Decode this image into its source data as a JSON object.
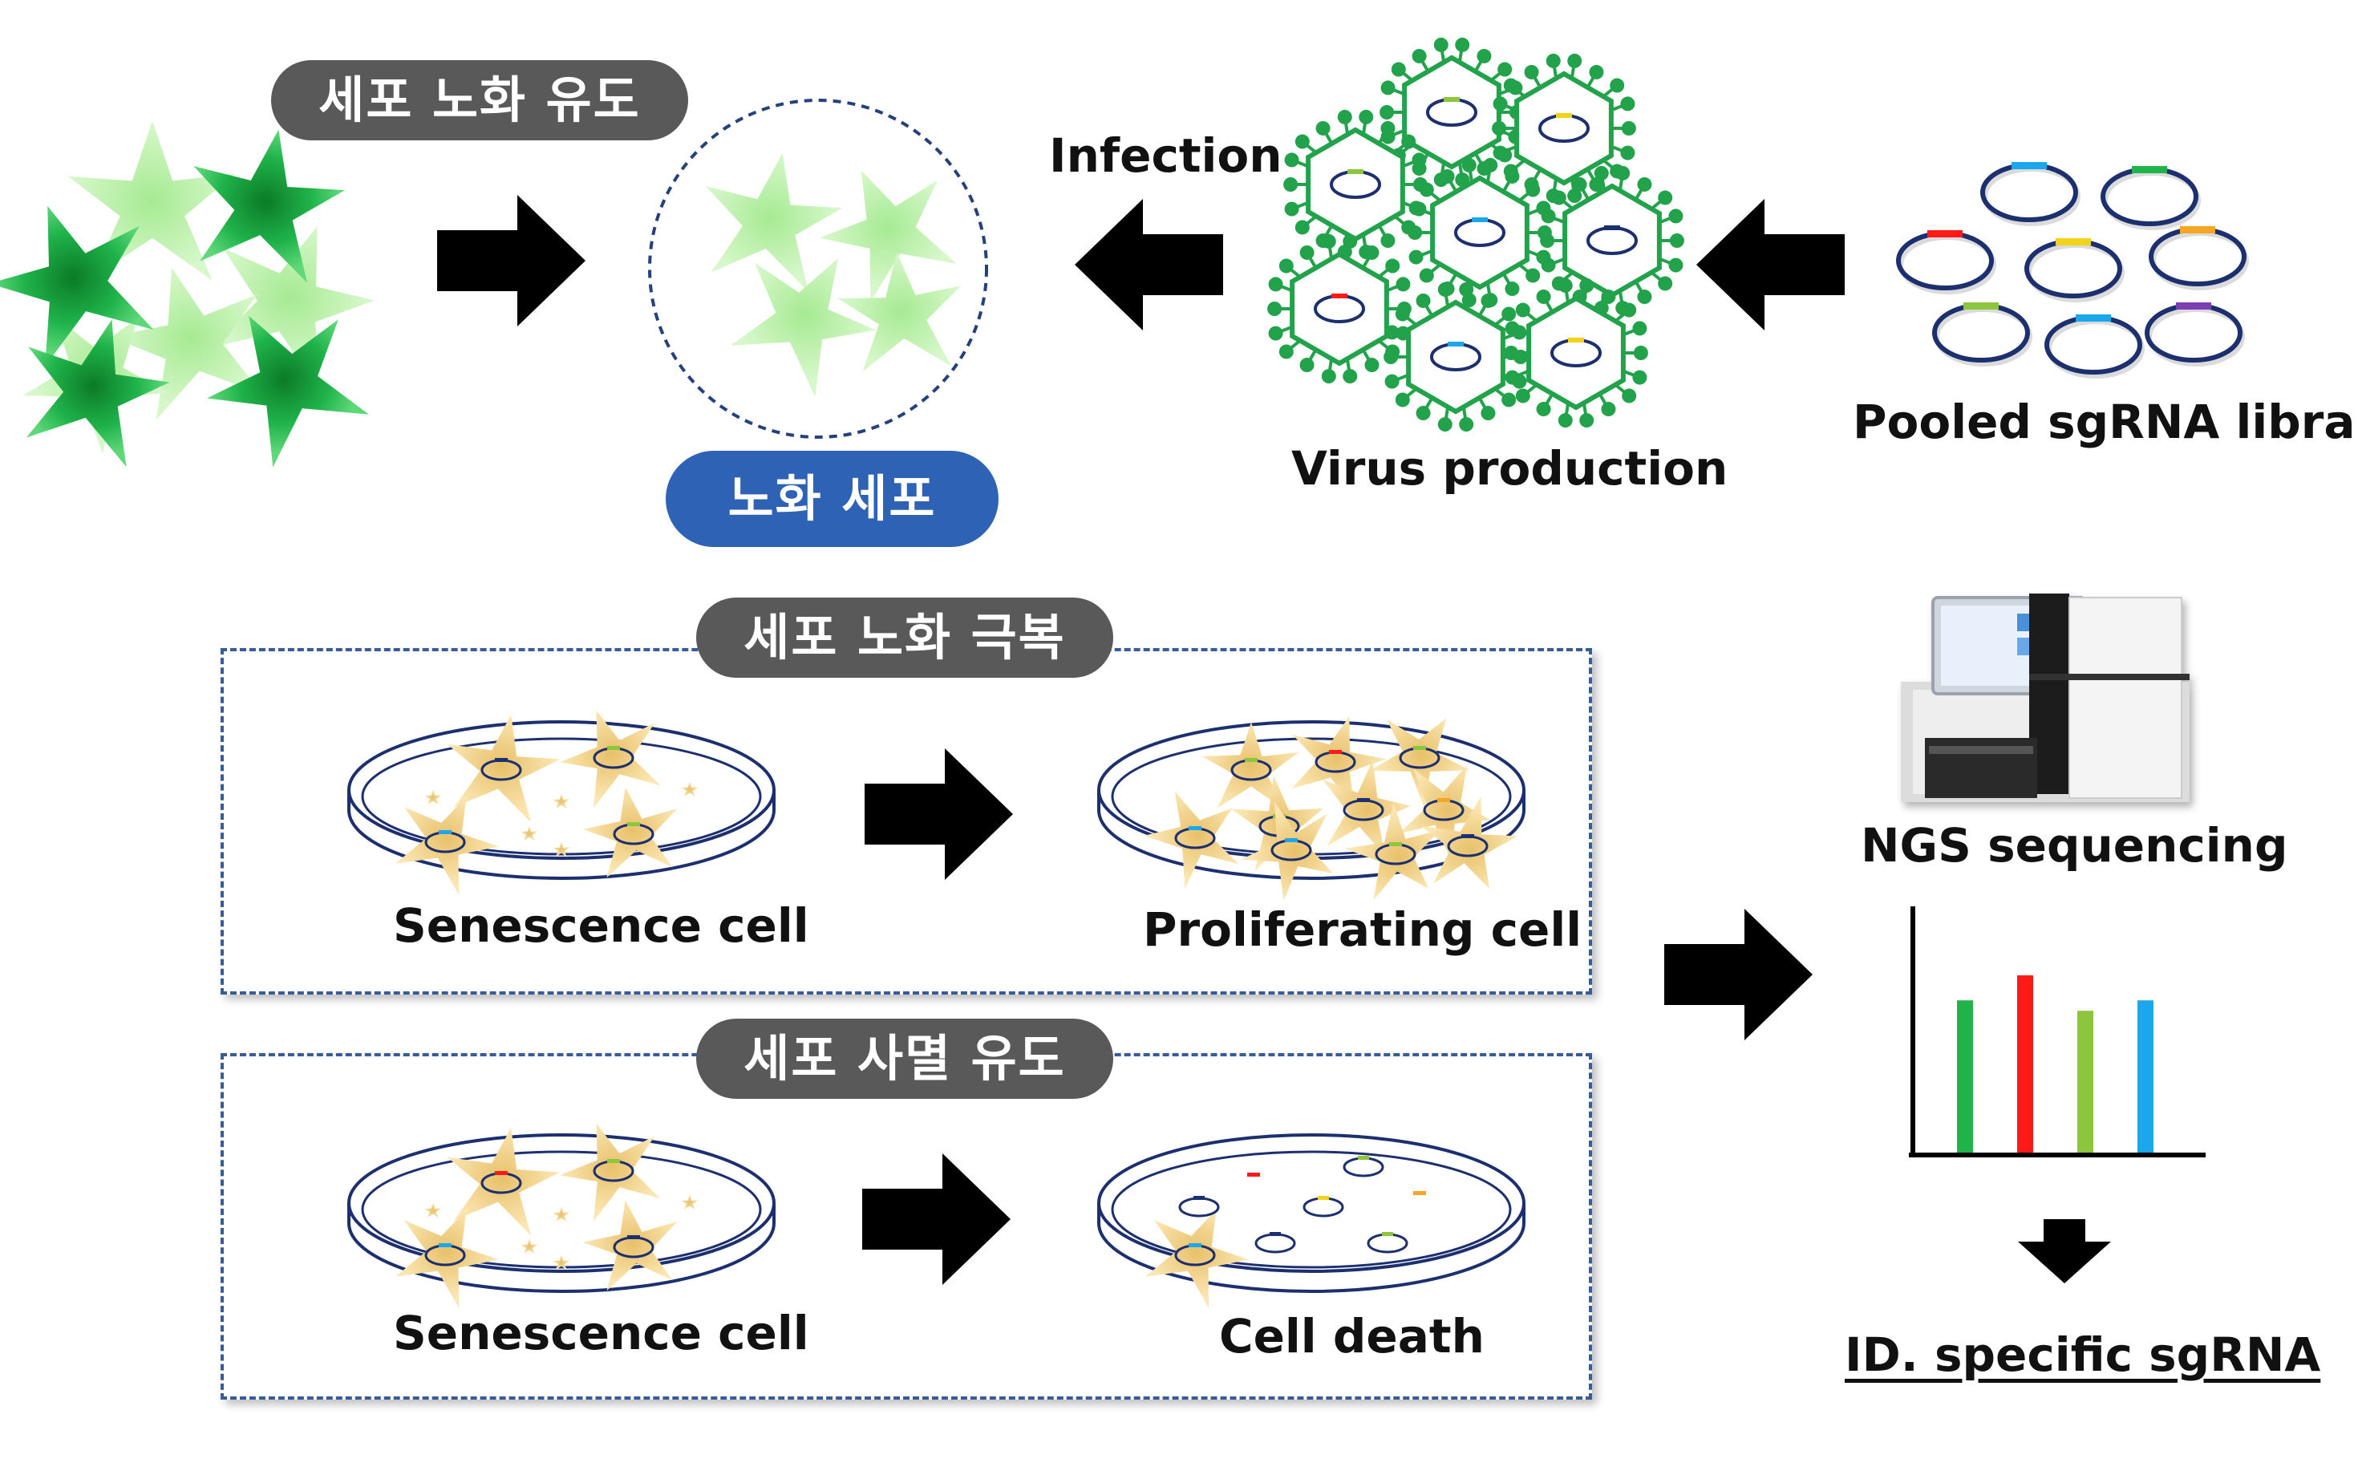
{
  "header": {
    "induce_label": "세포 노화 유도",
    "senescent_label": "노화 세포",
    "infection_label": "Infection",
    "virus_label": "Virus production",
    "library_label": "Pooled sgRNA library"
  },
  "panels": {
    "overcome": {
      "title": "세포 노화 극복",
      "left_label": "Senescence cell",
      "right_label": "Proliferating cell"
    },
    "death": {
      "title": "세포 사멸 유도",
      "left_label": "Senescence cell",
      "right_label": "Cell death"
    }
  },
  "right_column": {
    "ngs_label": "NGS sequencing",
    "result_label": "ID. specific sgRNA"
  },
  "colors": {
    "dark_green": "#1aa43a",
    "light_green": "#b7f0a6",
    "virus_green": "#22a24a",
    "plasmid_blue": "#1c2f6e",
    "pill_gray": "#595959",
    "pill_blue": "#2e62b5",
    "cell_yellow": "#f2d58a",
    "bar_green": "#1fb34a",
    "bar_red": "#ff1a1a",
    "bar_lime": "#8cc63f",
    "bar_blue": "#1aa7ec"
  },
  "bar_chart": {
    "values": [
      0.73,
      0.85,
      0.68,
      0.73
    ]
  }
}
